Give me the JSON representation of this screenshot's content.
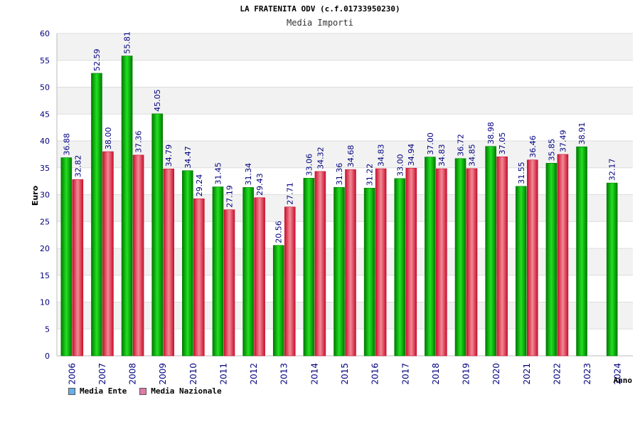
{
  "title": "LA FRATENITA ODV (c.f.01733950230)",
  "subtitle": "Media Importi",
  "colors": {
    "ente_dark": "#007a00",
    "ente_light": "#22e022",
    "naz_dark": "#c8102e",
    "naz_light": "#f28a96",
    "legend_ente": "#6aaee8",
    "legend_naz": "#e07aa8",
    "axis_text": "#000080",
    "band": "#f2f2f2",
    "grid": "#dddddd"
  },
  "legend": [
    {
      "label": "Media Ente",
      "color": "#6aaee8"
    },
    {
      "label": "Media Nazionale",
      "color": "#e07aa8"
    }
  ],
  "chart_data": {
    "type": "bar",
    "title": "Media Importi",
    "xlabel": "Anno",
    "ylabel": "Euro",
    "ylim": [
      0,
      60
    ],
    "yticks": [
      0,
      5,
      10,
      15,
      20,
      25,
      30,
      35,
      40,
      45,
      50,
      55,
      60
    ],
    "grid": true,
    "legend_position": "bottom-left",
    "categories": [
      "2006",
      "2007",
      "2008",
      "2009",
      "2010",
      "2011",
      "2012",
      "2013",
      "2014",
      "2015",
      "2016",
      "2017",
      "2018",
      "2019",
      "2020",
      "2021",
      "2022",
      "2023",
      "2024"
    ],
    "series": [
      {
        "name": "Media Ente",
        "values": [
          36.88,
          52.59,
          55.81,
          45.05,
          34.47,
          31.45,
          31.34,
          20.56,
          33.06,
          31.36,
          31.22,
          33.0,
          37.0,
          36.72,
          38.98,
          31.55,
          35.85,
          38.91,
          32.17
        ],
        "labels": [
          "36.88",
          "52.59",
          "55.81",
          "45.05",
          "34.47",
          "31.45",
          "31.34",
          "20.56",
          "33.06",
          "31.36",
          "31.22",
          "33.00",
          "37.00",
          "36.72",
          "38.98",
          "31.55",
          "35.85",
          "38.91",
          "32.17"
        ]
      },
      {
        "name": "Media Nazionale",
        "values": [
          32.82,
          38.0,
          37.36,
          34.79,
          29.24,
          27.19,
          29.43,
          27.71,
          34.32,
          34.68,
          34.83,
          34.94,
          34.83,
          34.85,
          37.05,
          36.46,
          37.49,
          null,
          null
        ],
        "labels": [
          "32.82",
          "38.00",
          "37.36",
          "34.79",
          "29.24",
          "27.19",
          "29.43",
          "27.71",
          "34.32",
          "34.68",
          "34.83",
          "34.94",
          "34.83",
          "34.85",
          "37.05",
          "36.46",
          "37.49",
          "",
          ""
        ]
      }
    ]
  }
}
